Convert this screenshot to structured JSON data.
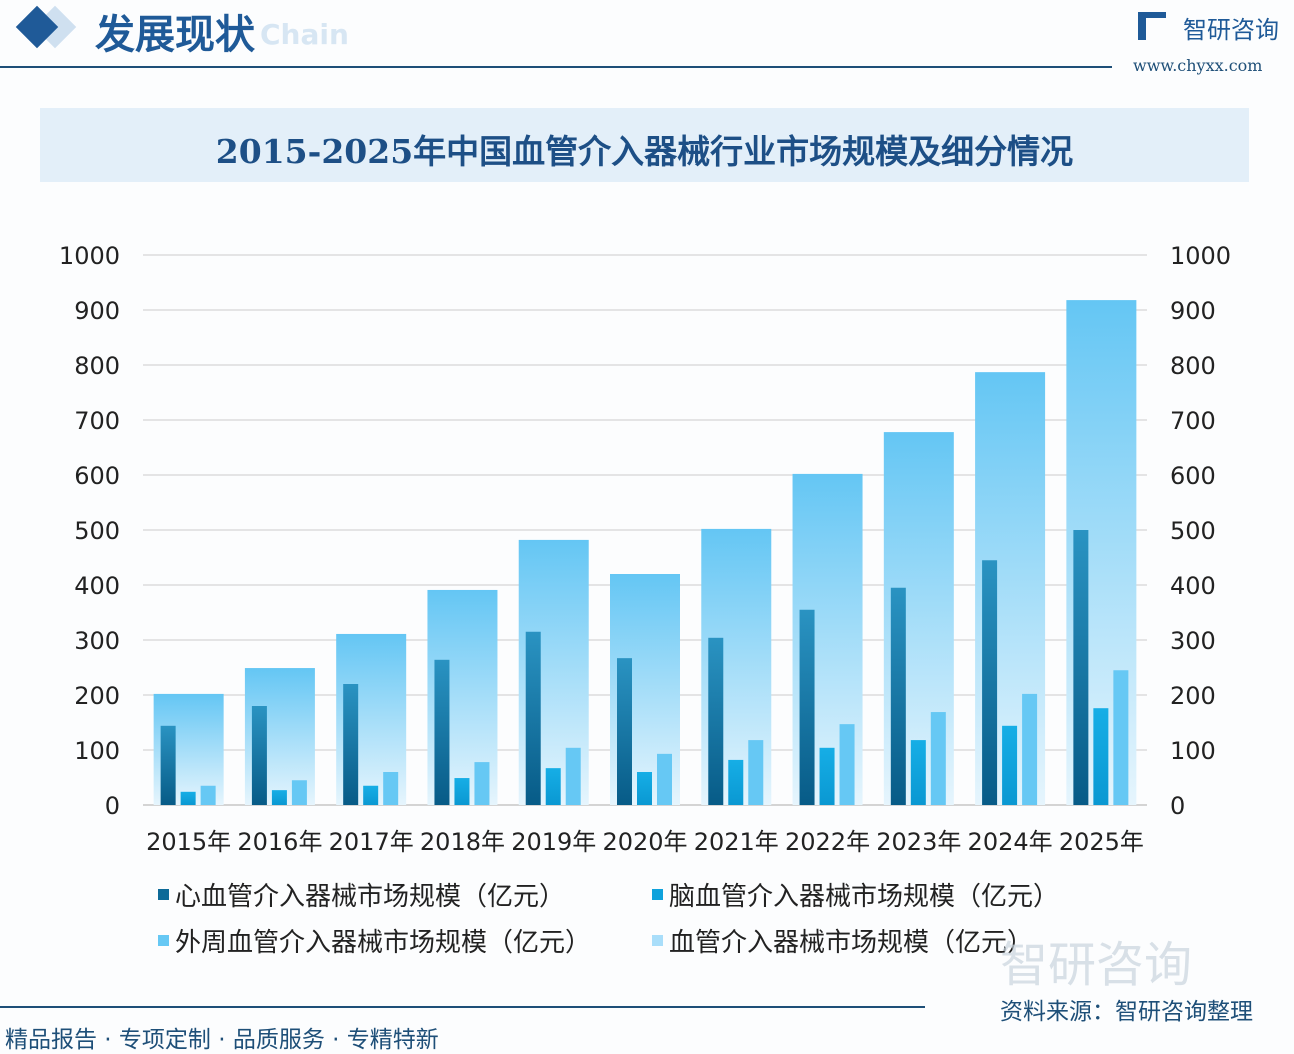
{
  "header": {
    "title": "发展现状",
    "subtitle_watermark": "Chain",
    "brand": "智研咨询",
    "url": "www.chyxx.com"
  },
  "footer": {
    "left": "精品报告 · 专项定制 · 品质服务 · 专精特新",
    "source": "资料来源：智研咨询整理",
    "watermark": "智研咨询"
  },
  "colors": {
    "total": "#6ecbf5",
    "cardio": "#0d6a98",
    "cerebro": "#0ea2dc",
    "peripheral": "#66c8f4"
  },
  "chart_data": {
    "type": "bar",
    "title": "2015-2025年中国血管介入器械行业市场规模及细分情况",
    "categories": [
      "2015年",
      "2016年",
      "2017年",
      "2018年",
      "2019年",
      "2020年",
      "2021年",
      "2022年",
      "2023年",
      "2024年",
      "2025年"
    ],
    "ylim": [
      0,
      1000
    ],
    "yticks": [
      "0",
      "100",
      "200",
      "300",
      "400",
      "500",
      "600",
      "700",
      "800",
      "900",
      "1000"
    ],
    "grid": true,
    "legend_position": "bottom",
    "series": [
      {
        "name": "心血管介入器械市场规模（亿元）",
        "values": [
          144,
          180,
          220,
          264,
          315,
          267,
          304,
          355,
          395,
          445,
          500
        ]
      },
      {
        "name": "脑血管介入器械市场规模（亿元）",
        "values": [
          24,
          27,
          35,
          49,
          67,
          60,
          82,
          104,
          118,
          144,
          176
        ]
      },
      {
        "name": "外周血管介入器械市场规模（亿元）",
        "values": [
          35,
          45,
          60,
          78,
          104,
          93,
          118,
          147,
          169,
          202,
          245
        ]
      },
      {
        "name": "血管介入器械市场规模（亿元）",
        "values": [
          202,
          249,
          311,
          391,
          482,
          420,
          502,
          602,
          678,
          787,
          918
        ]
      }
    ]
  }
}
